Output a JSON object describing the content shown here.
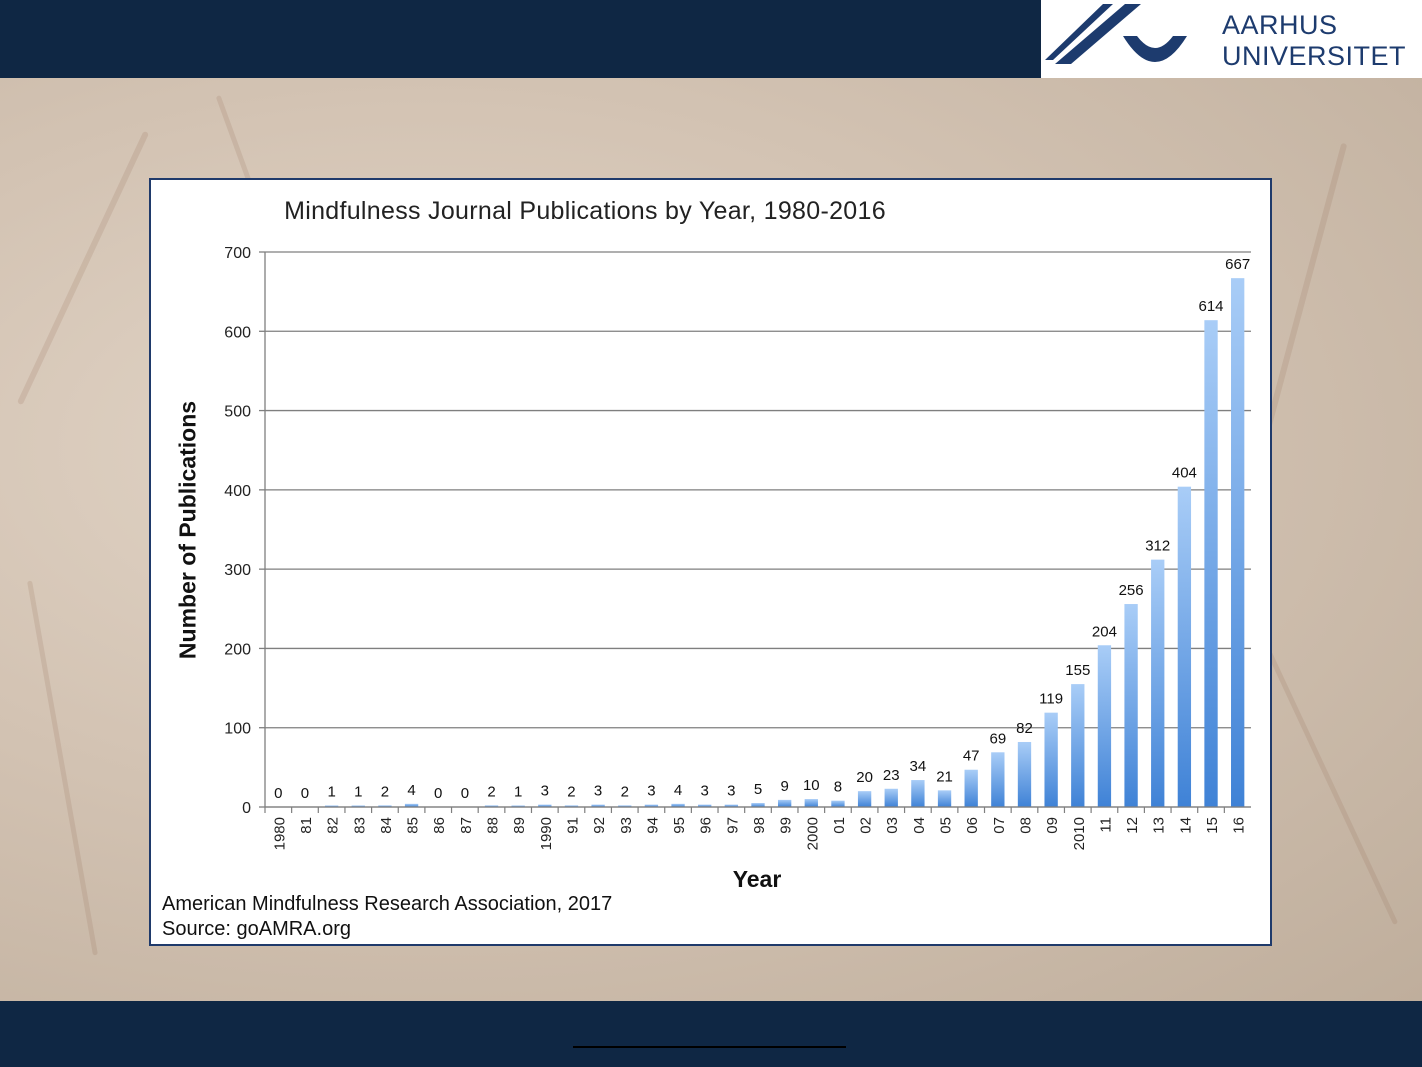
{
  "header": {
    "logo_line1": "AARHUS",
    "logo_line2": "UNIVERSITET",
    "brand_color": "#0f2744"
  },
  "credits": {
    "line1": "American Mindfulness Research Association, 2017",
    "line2": "Source: goAMRA.org"
  },
  "chart_data": {
    "type": "bar",
    "title": "Mindfulness Journal Publications by Year, 1980-2016",
    "xlabel": "Year",
    "ylabel": "Number of Publications",
    "ylim": [
      0,
      700
    ],
    "yticks": [
      0,
      100,
      200,
      300,
      400,
      500,
      600,
      700
    ],
    "grid": true,
    "bar_color": "#6aa3e8",
    "categories": [
      "1980",
      "81",
      "82",
      "83",
      "84",
      "85",
      "86",
      "87",
      "88",
      "89",
      "1990",
      "91",
      "92",
      "93",
      "94",
      "95",
      "96",
      "97",
      "98",
      "99",
      "2000",
      "01",
      "02",
      "03",
      "04",
      "05",
      "06",
      "07",
      "08",
      "09",
      "2010",
      "11",
      "12",
      "13",
      "14",
      "15",
      "16"
    ],
    "values": [
      0,
      0,
      1,
      1,
      2,
      4,
      0,
      0,
      2,
      1,
      3,
      2,
      3,
      2,
      3,
      4,
      3,
      3,
      5,
      9,
      10,
      8,
      20,
      23,
      34,
      21,
      47,
      69,
      82,
      119,
      155,
      204,
      256,
      312,
      404,
      614,
      667
    ]
  }
}
